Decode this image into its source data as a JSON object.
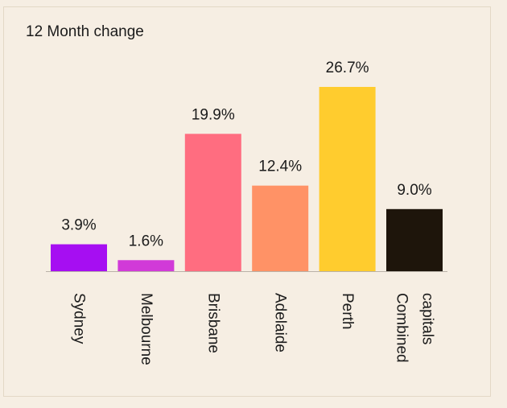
{
  "chart_data": {
    "type": "bar",
    "title": "12 Month change",
    "categories": [
      "Sydney",
      "Melbourne",
      "Brisbane",
      "Adelaide",
      "Perth",
      "Combined capitals"
    ],
    "category_lines": [
      [
        "Sydney"
      ],
      [
        "Melbourne"
      ],
      [
        "Brisbane"
      ],
      [
        "Adelaide"
      ],
      [
        "Perth"
      ],
      [
        "Combined",
        "capitals"
      ]
    ],
    "values": [
      3.9,
      1.6,
      19.9,
      12.4,
      26.7,
      9.0
    ],
    "value_labels": [
      "3.9%",
      "1.6%",
      "19.9%",
      "12.4%",
      "26.7%",
      "9.0%"
    ],
    "colors": [
      "#a60ef2",
      "#d13ad8",
      "#ff6d80",
      "#ff9266",
      "#ffcc2e",
      "#1e150b"
    ],
    "ylim": [
      0,
      26.7
    ],
    "grid": false,
    "legend": "none"
  }
}
